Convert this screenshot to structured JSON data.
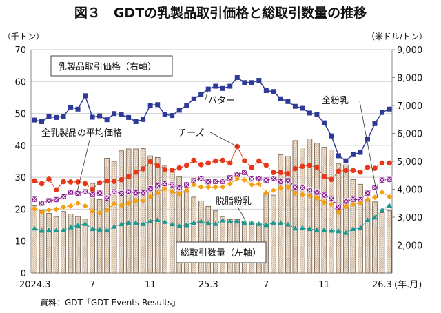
{
  "title": "図３　GDTの乳製品取引価格と総取引数量の推移",
  "source": "資料：GDT「GDT Events Results」",
  "chart_data": {
    "type": "bar+line",
    "left_axis": {
      "unit_label": "（千トン）",
      "ylim": [
        0,
        70
      ],
      "ticks": [
        0,
        10,
        20,
        30,
        40,
        50,
        60,
        70
      ]
    },
    "right_axis": {
      "unit_label": "（米ドル/トン）",
      "ylim": [
        1000,
        9000
      ],
      "ticks": [
        "2,000",
        "3,000",
        "4,000",
        "5,000",
        "6,000",
        "7,000",
        "8,000",
        "9,000"
      ]
    },
    "x_tick_labels": [
      {
        "index": 0,
        "label": "2024.3"
      },
      {
        "index": 8,
        "label": "7"
      },
      {
        "index": 16,
        "label": "11"
      },
      {
        "index": 24,
        "label": "25.3"
      },
      {
        "index": 32,
        "label": "7"
      },
      {
        "index": 40,
        "label": "11"
      },
      {
        "index": 48,
        "label": "26.3"
      }
    ],
    "x_unit_label": "(年.月)",
    "grid": "horizontal",
    "legend_box": "乳製品取引価格（右軸）",
    "bars": {
      "name": "総取引数量（左軸）",
      "axis": "left",
      "color": "#e9d8c4",
      "values": [
        21.1,
        19.6,
        18.7,
        17.7,
        19.3,
        18.5,
        17.7,
        16.9,
        28.1,
        23.0,
        36.0,
        35.0,
        38.3,
        38.9,
        38.9,
        39.0,
        36.7,
        36.2,
        33.7,
        32.5,
        30.1,
        25.7,
        23.8,
        22.6,
        20.9,
        19.5,
        17.7,
        16.8,
        16.8,
        16.3,
        16.3,
        15.7,
        25.1,
        24.4,
        37.1,
        36.6,
        41.5,
        39.2,
        42.0,
        40.7,
        39.4,
        38.6,
        34.2,
        33.9,
        29.3,
        27.8,
        23.0,
        22.3,
        18.9,
        19.5
      ]
    },
    "series": [
      {
        "name": "バター",
        "axis": "right",
        "color": "#2e3a97",
        "marker": "square",
        "values": [
          6480,
          6420,
          6600,
          6570,
          6610,
          6940,
          6870,
          7350,
          6580,
          6630,
          6490,
          6710,
          6670,
          6570,
          6420,
          6500,
          7010,
          7030,
          6680,
          6640,
          6830,
          7000,
          7240,
          7390,
          7590,
          7690,
          7610,
          7690,
          8000,
          7820,
          7820,
          7900,
          7530,
          7500,
          7240,
          7140,
          6970,
          6900,
          6730,
          6670,
          6380,
          5910,
          5200,
          5020,
          5240,
          5320,
          5790,
          6350,
          6750,
          6870
        ]
      },
      {
        "name": "チーズ",
        "axis": "right",
        "color": "#e8381a",
        "marker": "circle",
        "values": [
          4300,
          4200,
          4360,
          3980,
          4270,
          4260,
          4260,
          4200,
          4000,
          4230,
          4300,
          4280,
          4340,
          4450,
          4610,
          4730,
          4990,
          4840,
          4710,
          4680,
          4760,
          4860,
          5040,
          4880,
          4940,
          5010,
          5040,
          4940,
          5530,
          5020,
          4780,
          5010,
          4860,
          4600,
          4600,
          4560,
          4740,
          4820,
          4860,
          4780,
          4460,
          4350,
          4650,
          4670,
          4670,
          4610,
          4780,
          4750,
          4940,
          4940
        ]
      },
      {
        "name": "全乳製品の平均価格",
        "axis": "right",
        "color": "#8b1f8e",
        "marker": "xsquare",
        "values": [
          3640,
          3500,
          3590,
          3630,
          3730,
          3890,
          3850,
          3910,
          3810,
          3860,
          3680,
          3910,
          3850,
          3910,
          3870,
          3870,
          4020,
          4120,
          4200,
          4160,
          4050,
          4160,
          4310,
          4380,
          4270,
          4280,
          4280,
          4410,
          4530,
          4600,
          4370,
          4390,
          4330,
          4390,
          4270,
          4310,
          4080,
          4060,
          3970,
          3890,
          3790,
          3680,
          3360,
          3570,
          3640,
          3630,
          3860,
          4060,
          4330,
          4350
        ]
      },
      {
        "name": "全粉乳",
        "axis": "right",
        "color": "#f5a00f",
        "marker": "diamond",
        "values": [
          3300,
          3180,
          3260,
          3280,
          3360,
          3400,
          3500,
          3400,
          3220,
          3150,
          3260,
          3480,
          3420,
          3500,
          3590,
          3590,
          3730,
          3870,
          4020,
          3910,
          3830,
          3970,
          4160,
          4080,
          4080,
          4080,
          4080,
          4190,
          4380,
          4330,
          4160,
          4190,
          3870,
          3960,
          4040,
          4080,
          3860,
          3810,
          3770,
          3690,
          3530,
          3460,
          3180,
          3380,
          3460,
          3500,
          3630,
          3710,
          3890,
          3730
        ]
      },
      {
        "name": "脱脂粉乳",
        "axis": "right",
        "color": "#179a92",
        "marker": "triangle",
        "values": [
          2600,
          2520,
          2540,
          2530,
          2540,
          2640,
          2700,
          2760,
          2580,
          2560,
          2530,
          2660,
          2750,
          2800,
          2800,
          2760,
          2860,
          2900,
          2830,
          2750,
          2680,
          2720,
          2800,
          2850,
          2790,
          2760,
          2890,
          2850,
          2850,
          2800,
          2800,
          2760,
          2720,
          2800,
          2800,
          2740,
          2600,
          2620,
          2580,
          2540,
          2540,
          2520,
          2500,
          2440,
          2580,
          2620,
          2900,
          2990,
          3260,
          3420
        ]
      }
    ]
  }
}
